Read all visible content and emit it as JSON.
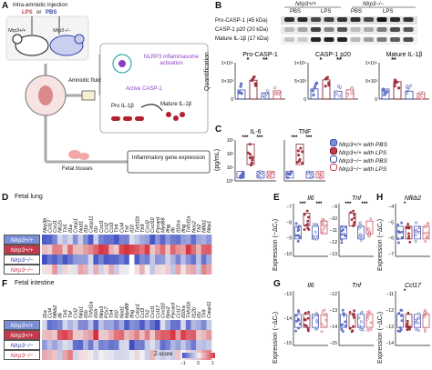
{
  "panels": {
    "A": "A",
    "B": "B",
    "C": "C",
    "D": "D",
    "E": "E",
    "F": "F",
    "G": "G",
    "H": "H"
  },
  "schematic": {
    "title": "Intra-amniotic injection",
    "lps": "LPS",
    "or": "or",
    "pbs": "PBS",
    "mouse_wt": "Nlrp3+/+",
    "mouse_ko": "Nlrp3−/−",
    "amniotic_fluid": "Amniotic fluid",
    "nlrp3_activation": "NLRP3 inflammasome activation",
    "active_casp1": "Active CASP-1",
    "pro_il1b": "Pro IL-1β",
    "mature_il1b": "Mature IL-1β",
    "fetal_tissues": "Fetal tissues",
    "inflammatory": "Inflammatory gene expression"
  },
  "panel_b": {
    "header_wt": "Nlrp3+/+",
    "header_ko": "Nlrp3−/−",
    "pbs": "PBS",
    "lps": "LPS",
    "blot_rows": [
      "Pro-CASP-1 (45 kDa)",
      "CASP-1 p20 (20 kDa)",
      "Mature IL-1β (17 kDa)"
    ],
    "plot_titles": [
      "Pro-CASP-1",
      "CASP-1 p20",
      "Mature IL-1β"
    ],
    "ylabel": "Quantification",
    "yticks": [
      "1×10⁴",
      "5×10³",
      "0"
    ],
    "sig": [
      "*",
      "**",
      "*",
      "**",
      "**"
    ]
  },
  "panel_c": {
    "plot_titles": [
      "IL-6",
      "TNF"
    ],
    "ylabel": "(pg/mL)",
    "yticks": [
      "10³",
      "10²",
      "10¹",
      "10⁰"
    ],
    "sig": [
      "***",
      "***",
      "***",
      "***"
    ],
    "legend": [
      "Nlrp3+/+ with PBS",
      "Nlrp3+/+ with LPS",
      "Nlrp3−/− with PBS",
      "Nlrp3−/− with LPS"
    ]
  },
  "panel_d": {
    "title": "Fetal lung",
    "genes": [
      "Nlrp3b",
      "Ccl17",
      "Cxcl1",
      "Nfc2s",
      "Tlr5",
      "Il1a",
      "Casp1",
      "Nod1",
      "Il1b",
      "Casp11",
      "Il1r",
      "Cxcl1",
      "Ccl2",
      "Ccl3",
      "Tlr4",
      "Ccl4",
      "Tnf",
      "Il10",
      "Tnfsf1b",
      "Tlr9",
      "Cxcl2",
      "Cxcl10",
      "Pycard",
      "Myd88",
      "Ifng",
      "Il6",
      "Il10ra",
      "Ifng",
      "Tnfsf1a",
      "Nos2",
      "Tlr2",
      "Nfkb1",
      "Nlrp1"
    ],
    "rows": [
      "Nlrp3+/+",
      "Nlrp3+/+",
      "Nlrp3−/−",
      "Nlrp3−/−"
    ]
  },
  "panel_f": {
    "title": "Fetal intestine",
    "genes": [
      "Il1a",
      "Ccl4",
      "Nfkb2",
      "Il6",
      "Tlr5",
      "Tnf",
      "Ccl2",
      "Nlrp1",
      "Il1b",
      "Tnfsf1a",
      "Il10r",
      "Nlrp3",
      "P2x7",
      "Tlr4",
      "Il10",
      "Nod1",
      "Myd88",
      "Ifng",
      "Casp1",
      "Ccl3",
      "Tlr2",
      "Cxcl1",
      "Ccl17",
      "Cxcl10",
      "Nos2",
      "Pycard",
      "Ccl17",
      "Il10ra",
      "Tnfsf1b",
      "Il12b",
      "Il1r",
      "Tlr9",
      "Casp11"
    ],
    "rows": [
      "Nlrp3+/+",
      "Nlrp3+/+",
      "Nlrp3−/−",
      "Nlrp3−/−"
    ],
    "zscore": "Z-score",
    "zticks": [
      "−1",
      "0",
      "1"
    ]
  },
  "panel_e": {
    "titles": [
      "Il6",
      "Tnf"
    ],
    "ylabel": "Expression (−ΔCₜ)",
    "yticks_il6": [
      "−7",
      "−8",
      "−9",
      "−10"
    ],
    "yticks_tnf": [
      "−9",
      "−10",
      "−11",
      "−12",
      "−13"
    ],
    "sig": [
      "***",
      "***",
      "***",
      "***"
    ]
  },
  "panel_h": {
    "title": "Nfkb2",
    "ylabel": "Expression (−ΔCₜ)",
    "yticks": [
      "−4",
      "−5",
      "−6",
      "−7"
    ],
    "sig": [
      "*"
    ]
  },
  "panel_g": {
    "titles": [
      "Il6",
      "Tnf"
    ],
    "ylabel": "Expression (−ΔCₜ)",
    "yticks_il6": [
      "−13",
      "−14",
      "−15"
    ],
    "yticks_tnf": [
      "−12",
      "−13",
      "−14",
      "−15"
    ],
    "sig": []
  },
  "panel_ccl17": {
    "title": "Ccl17",
    "ylabel": "Expression (−ΔCₜ)",
    "yticks": [
      "−11",
      "−12",
      "−13",
      "−14"
    ],
    "sig": [
      "*"
    ]
  },
  "colors": {
    "wt_pbs": "#7b8fd6",
    "wt_lps": "#c23a4b",
    "ko_pbs": "#3344aa",
    "ko_lps": "#e0909a",
    "purple": "#8b3fc7"
  }
}
